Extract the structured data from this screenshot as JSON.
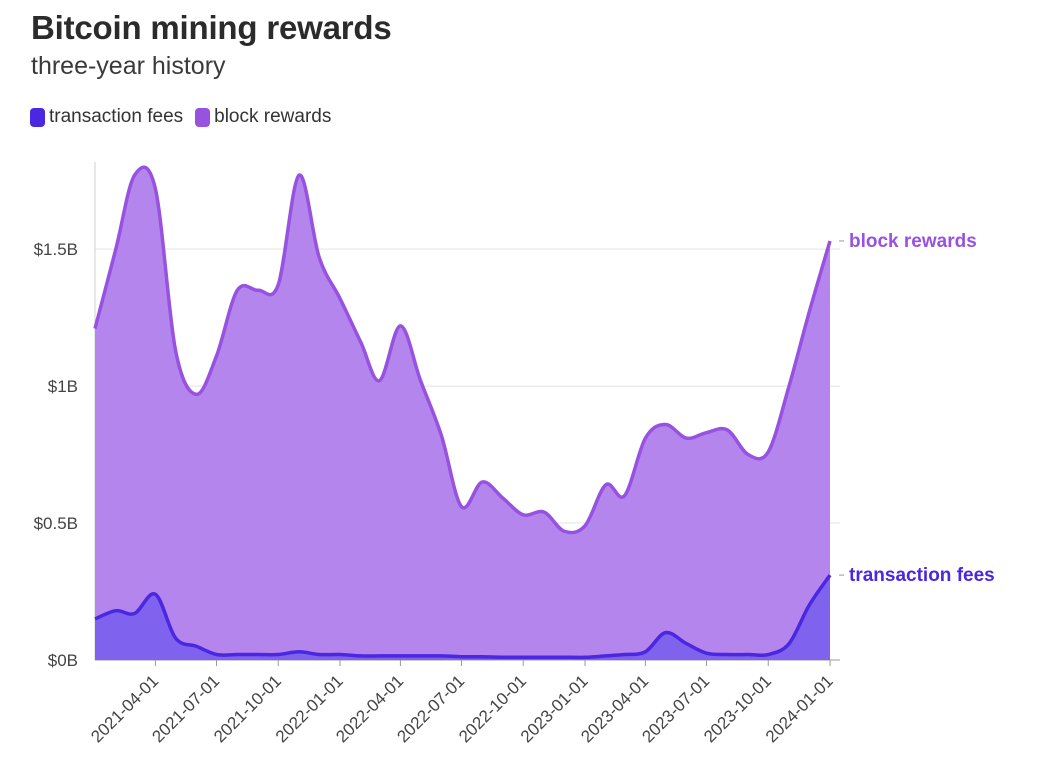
{
  "chart_data": {
    "type": "area",
    "title": "Bitcoin mining rewards",
    "subtitle": "three-year history",
    "xlabel": "",
    "ylabel": "",
    "x_ticks": [
      "2021-04-01",
      "2021-07-01",
      "2021-10-01",
      "2022-01-01",
      "2022-04-01",
      "2022-07-01",
      "2022-10-01",
      "2023-01-01",
      "2023-04-01",
      "2023-07-01",
      "2023-10-01",
      "2024-01-01"
    ],
    "y_ticks": [
      {
        "value": 0,
        "label": "$0B"
      },
      {
        "value": 0.5,
        "label": "$0.5B"
      },
      {
        "value": 1,
        "label": "$1B"
      },
      {
        "value": 1.5,
        "label": "$1.5B"
      }
    ],
    "ylim": [
      0,
      1.8
    ],
    "grid": true,
    "legend_position": "top-left",
    "series": [
      {
        "name": "transaction fees",
        "color": "#4a27e0",
        "fill": "#7f62ee",
        "end_label": "transaction fees",
        "points": [
          [
            "2021-01-01",
            0.15
          ],
          [
            "2021-02-01",
            0.18
          ],
          [
            "2021-03-01",
            0.17
          ],
          [
            "2021-04-01",
            0.24
          ],
          [
            "2021-05-01",
            0.08
          ],
          [
            "2021-06-01",
            0.05
          ],
          [
            "2021-07-01",
            0.02
          ],
          [
            "2021-08-01",
            0.02
          ],
          [
            "2021-09-01",
            0.02
          ],
          [
            "2021-10-01",
            0.02
          ],
          [
            "2021-11-01",
            0.03
          ],
          [
            "2021-12-01",
            0.02
          ],
          [
            "2022-01-01",
            0.02
          ],
          [
            "2022-02-01",
            0.015
          ],
          [
            "2022-03-01",
            0.015
          ],
          [
            "2022-04-01",
            0.015
          ],
          [
            "2022-05-01",
            0.015
          ],
          [
            "2022-06-01",
            0.015
          ],
          [
            "2022-07-01",
            0.012
          ],
          [
            "2022-08-01",
            0.012
          ],
          [
            "2022-09-01",
            0.01
          ],
          [
            "2022-10-01",
            0.01
          ],
          [
            "2022-11-01",
            0.01
          ],
          [
            "2022-12-01",
            0.01
          ],
          [
            "2023-01-01",
            0.01
          ],
          [
            "2023-02-01",
            0.015
          ],
          [
            "2023-03-01",
            0.02
          ],
          [
            "2023-04-01",
            0.03
          ],
          [
            "2023-05-01",
            0.1
          ],
          [
            "2023-06-01",
            0.06
          ],
          [
            "2023-07-01",
            0.025
          ],
          [
            "2023-08-01",
            0.02
          ],
          [
            "2023-09-01",
            0.02
          ],
          [
            "2023-10-01",
            0.02
          ],
          [
            "2023-11-01",
            0.06
          ],
          [
            "2023-12-01",
            0.2
          ],
          [
            "2024-01-01",
            0.31
          ]
        ]
      },
      {
        "name": "block rewards",
        "color": "#9752e0",
        "fill": "#b486ed",
        "end_label": "block rewards",
        "points": [
          [
            "2021-01-01",
            1.21
          ],
          [
            "2021-02-01",
            1.5
          ],
          [
            "2021-03-01",
            1.77
          ],
          [
            "2021-04-01",
            1.72
          ],
          [
            "2021-05-01",
            1.13
          ],
          [
            "2021-06-01",
            0.97
          ],
          [
            "2021-07-01",
            1.11
          ],
          [
            "2021-08-01",
            1.35
          ],
          [
            "2021-09-01",
            1.35
          ],
          [
            "2021-10-01",
            1.37
          ],
          [
            "2021-11-01",
            1.77
          ],
          [
            "2021-12-01",
            1.47
          ],
          [
            "2022-01-01",
            1.32
          ],
          [
            "2022-02-01",
            1.16
          ],
          [
            "2022-03-01",
            1.02
          ],
          [
            "2022-04-01",
            1.22
          ],
          [
            "2022-05-01",
            1.02
          ],
          [
            "2022-06-01",
            0.82
          ],
          [
            "2022-07-01",
            0.56
          ],
          [
            "2022-08-01",
            0.65
          ],
          [
            "2022-09-01",
            0.59
          ],
          [
            "2022-10-01",
            0.53
          ],
          [
            "2022-11-01",
            0.54
          ],
          [
            "2022-12-01",
            0.47
          ],
          [
            "2023-01-01",
            0.49
          ],
          [
            "2023-02-01",
            0.64
          ],
          [
            "2023-03-01",
            0.6
          ],
          [
            "2023-04-01",
            0.81
          ],
          [
            "2023-05-01",
            0.86
          ],
          [
            "2023-06-01",
            0.81
          ],
          [
            "2023-07-01",
            0.83
          ],
          [
            "2023-08-01",
            0.84
          ],
          [
            "2023-09-01",
            0.75
          ],
          [
            "2023-10-01",
            0.76
          ],
          [
            "2023-11-01",
            1.0
          ],
          [
            "2023-12-01",
            1.27
          ],
          [
            "2024-01-01",
            1.53
          ]
        ]
      }
    ]
  }
}
